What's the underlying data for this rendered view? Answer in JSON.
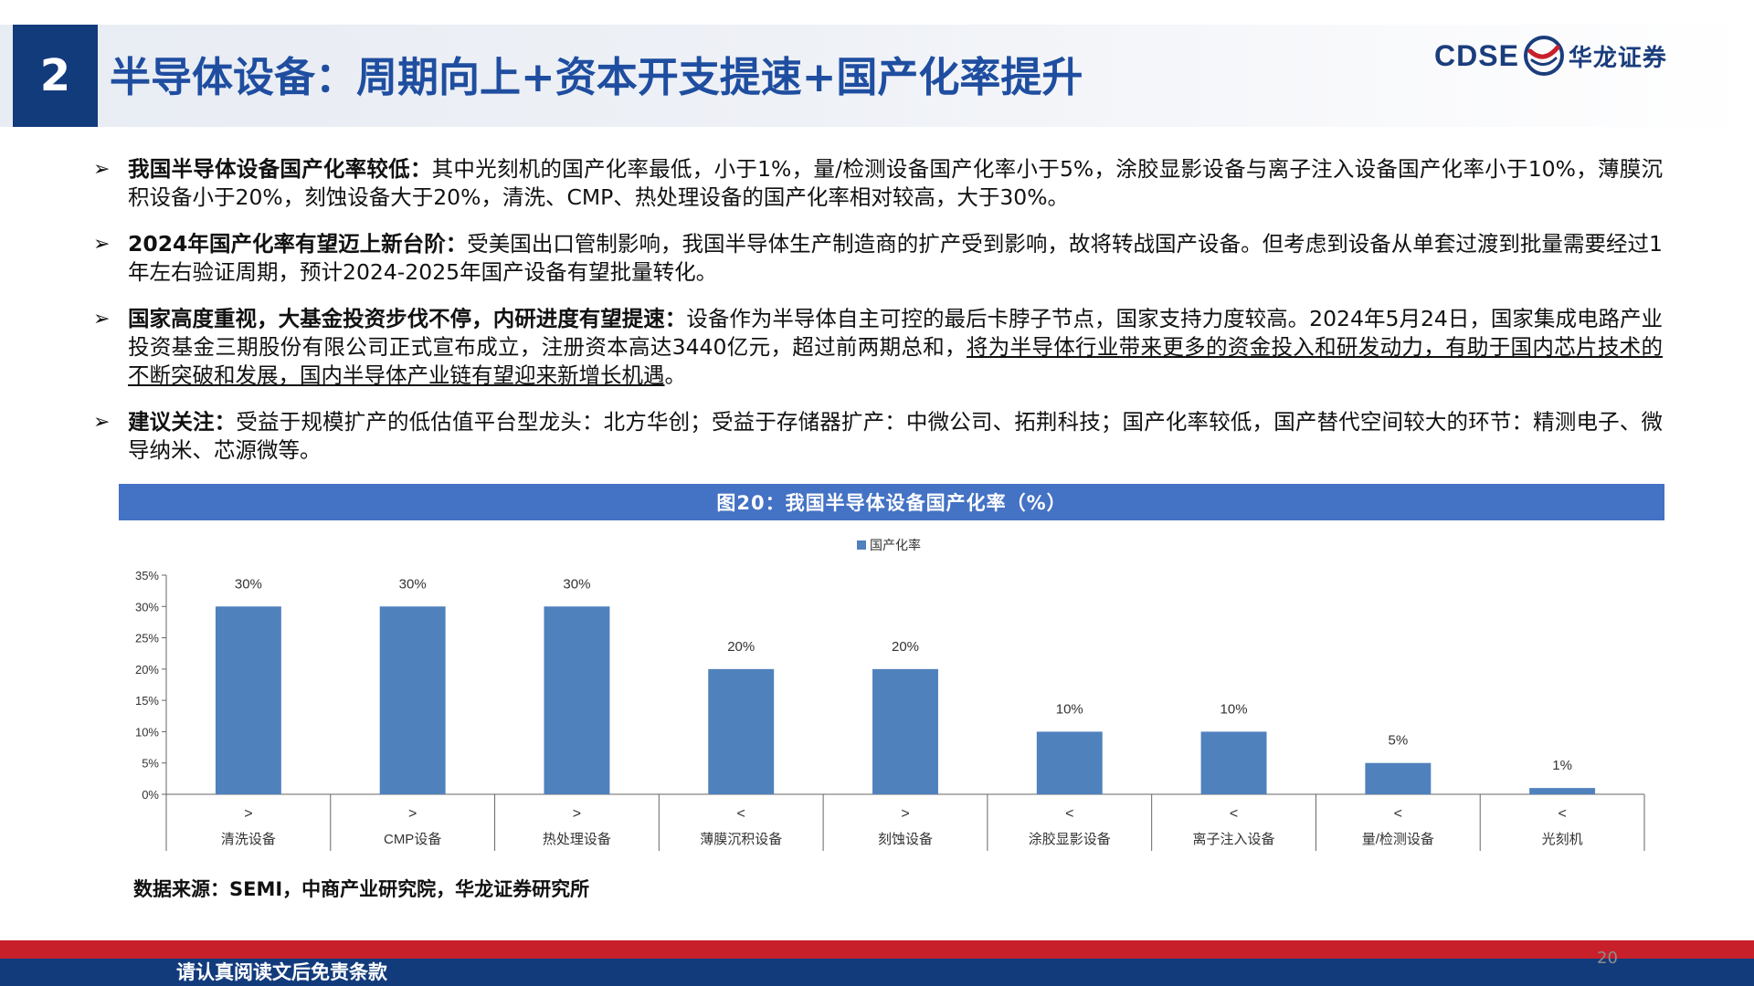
{
  "header": {
    "section_number": "2",
    "title": "半导体设备：周期向上+资本开支提速+国产化率提升",
    "logo_latin": "CDSE",
    "logo_cn": "华龙证券"
  },
  "bullets": [
    {
      "lead": "我国半导体设备国产化率较低：",
      "text": "其中光刻机的国产化率最低，小于1%，量/检测设备国产化率小于5%，涂胶显影设备与离子注入设备国产化率小于10%，薄膜沉积设备小于20%，刻蚀设备大于20%，清洗、CMP、热处理设备的国产化率相对较高，大于30%。"
    },
    {
      "lead": "2024年国产化率有望迈上新台阶：",
      "text": "受美国出口管制影响，我国半导体生产制造商的扩产受到影响，故将转战国产设备。但考虑到设备从单套过渡到批量需要经过1年左右验证周期，预计2024-2025年国产设备有望批量转化。"
    },
    {
      "lead": "国家高度重视，大基金投资步伐不停，内研进度有望提速：",
      "text": "设备作为半导体自主可控的最后卡脖子节点，国家支持力度较高。2024年5月24日，国家集成电路产业投资基金三期股份有限公司正式宣布成立，注册资本高达3440亿元，超过前两期总和，",
      "underlined": "将为半导体行业带来更多的资金投入和研发动力，有助于国内芯片技术的不断突破和发展，国内半导体产业链有望迎来新增长机遇",
      "tail": "。"
    },
    {
      "lead": "建议关注：",
      "text": "受益于规模扩产的低估值平台型龙头：北方华创；受益于存储器扩产：中微公司、拓荆科技；国产化率较低，国产替代空间较大的环节：精测电子、微导纳米、芯源微等。"
    }
  ],
  "chart_header": "图20：我国半导体设备国产化率（%）",
  "chart_data": {
    "type": "bar",
    "legend": "国产化率",
    "legend_position": "top-center",
    "categories": [
      "清洗设备",
      "CMP设备",
      "热处理设备",
      "薄膜沉积设备",
      "刻蚀设备",
      "涂胶显影设备",
      "离子注入设备",
      "量/检测设备",
      "光刻机"
    ],
    "comparators": [
      ">",
      ">",
      ">",
      "<",
      ">",
      "<",
      "<",
      "<",
      "<"
    ],
    "series": [
      {
        "name": "国产化率",
        "values": [
          30,
          30,
          30,
          20,
          20,
          10,
          10,
          5,
          1
        ]
      }
    ],
    "data_labels": [
      "30%",
      "30%",
      "30%",
      "20%",
      "20%",
      "10%",
      "10%",
      "5%",
      "1%"
    ],
    "y_ticks": [
      "0%",
      "5%",
      "10%",
      "15%",
      "20%",
      "25%",
      "30%",
      "35%"
    ],
    "ylim": [
      0,
      35
    ],
    "bar_color": "#4f81bd",
    "grid": false
  },
  "source": "数据来源：SEMI，中商产业研究院，华龙证券研究所",
  "footer": {
    "disclaimer": "请认真阅读文后免责条款",
    "page_number": "20"
  }
}
